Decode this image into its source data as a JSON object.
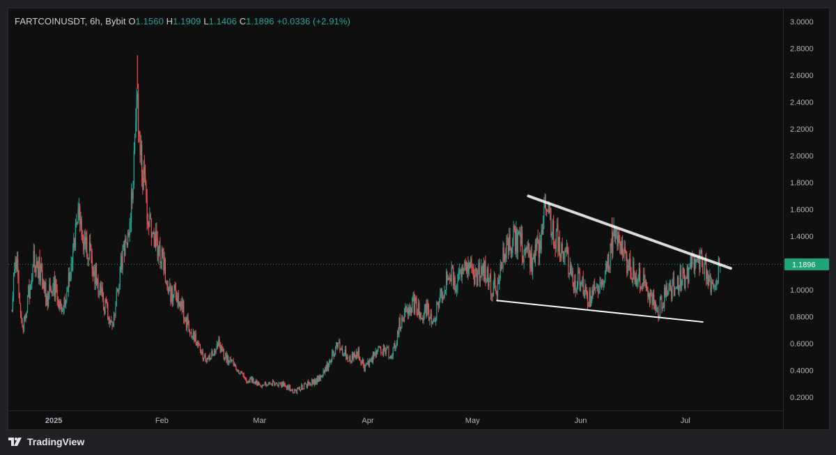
{
  "legend": {
    "symbol": "FARTCOINUSDT",
    "interval": "6h",
    "exchange": "Bybit",
    "open_label": "O",
    "open": "1.1560",
    "high_label": "H",
    "high": "1.1909",
    "low_label": "L",
    "low": "1.1406",
    "close_label": "C",
    "close": "1.1896",
    "change": "+0.0336",
    "change_pct": "(+2.91%)"
  },
  "branding": {
    "name": "TradingView",
    "logo_icon": "tradingview-logo-icon"
  },
  "colors": {
    "up": "#26a69a",
    "down": "#ef5350",
    "last_price_badge": "#22a37a",
    "trendline": "#ffffff",
    "background": "#0f0f10"
  },
  "chart_data": {
    "type": "candlestick",
    "title": "FARTCOINUSDT, 6h, Bybit",
    "ylim": [
      0.1,
      3.1
    ],
    "y_ticks": [
      "0.2000",
      "0.4000",
      "0.6000",
      "0.8000",
      "1.0000",
      "1.2000",
      "1.4000",
      "1.6000",
      "1.8000",
      "2.0000",
      "2.2000",
      "2.4000",
      "2.6000",
      "2.8000",
      "3.0000"
    ],
    "x_range": [
      "2024-12-19",
      "2025-07-29"
    ],
    "x_ticks": [
      {
        "label": "2025",
        "date": "2025-01-01",
        "bold": true
      },
      {
        "label": "Feb",
        "date": "2025-02-01",
        "bold": false
      },
      {
        "label": "Mar",
        "date": "2025-03-01",
        "bold": false
      },
      {
        "label": "Apr",
        "date": "2025-04-01",
        "bold": false
      },
      {
        "label": "May",
        "date": "2025-05-01",
        "bold": false
      },
      {
        "label": "Jun",
        "date": "2025-06-01",
        "bold": false
      },
      {
        "label": "Jul",
        "date": "2025-07-01",
        "bold": false
      }
    ],
    "last_price": "1.1896",
    "last_price_value": 1.1896,
    "price_path": [
      [
        "2024-12-20",
        0.85
      ],
      [
        "2024-12-21",
        1.28
      ],
      [
        "2024-12-22",
        1.0
      ],
      [
        "2024-12-23",
        0.68
      ],
      [
        "2024-12-25",
        1.0
      ],
      [
        "2024-12-26",
        1.25
      ],
      [
        "2024-12-28",
        1.15
      ],
      [
        "2024-12-30",
        0.92
      ],
      [
        "2025-01-01",
        1.05
      ],
      [
        "2025-01-03",
        0.88
      ],
      [
        "2025-01-05",
        1.0
      ],
      [
        "2025-01-07",
        1.38
      ],
      [
        "2025-01-08",
        1.55
      ],
      [
        "2025-01-10",
        1.35
      ],
      [
        "2025-01-12",
        1.2
      ],
      [
        "2025-01-14",
        1.0
      ],
      [
        "2025-01-16",
        0.85
      ],
      [
        "2025-01-18",
        0.75
      ],
      [
        "2025-01-19",
        1.0
      ],
      [
        "2025-01-21",
        1.3
      ],
      [
        "2025-01-23",
        1.55
      ],
      [
        "2025-01-24",
        2.0
      ],
      [
        "2025-01-25",
        2.5
      ],
      [
        "2025-01-26",
        1.95
      ],
      [
        "2025-01-28",
        1.5
      ],
      [
        "2025-01-30",
        1.35
      ],
      [
        "2025-02-01",
        1.25
      ],
      [
        "2025-02-03",
        1.0
      ],
      [
        "2025-02-05",
        0.95
      ],
      [
        "2025-02-07",
        0.85
      ],
      [
        "2025-02-09",
        0.7
      ],
      [
        "2025-02-11",
        0.6
      ],
      [
        "2025-02-13",
        0.5
      ],
      [
        "2025-02-15",
        0.5
      ],
      [
        "2025-02-17",
        0.6
      ],
      [
        "2025-02-19",
        0.5
      ],
      [
        "2025-02-21",
        0.45
      ],
      [
        "2025-02-23",
        0.38
      ],
      [
        "2025-02-25",
        0.33
      ],
      [
        "2025-02-27",
        0.33
      ],
      [
        "2025-03-01",
        0.29
      ],
      [
        "2025-03-03",
        0.3
      ],
      [
        "2025-03-05",
        0.3
      ],
      [
        "2025-03-07",
        0.3
      ],
      [
        "2025-03-09",
        0.27
      ],
      [
        "2025-03-11",
        0.24
      ],
      [
        "2025-03-13",
        0.27
      ],
      [
        "2025-03-15",
        0.3
      ],
      [
        "2025-03-17",
        0.32
      ],
      [
        "2025-03-19",
        0.37
      ],
      [
        "2025-03-21",
        0.45
      ],
      [
        "2025-03-23",
        0.58
      ],
      [
        "2025-03-25",
        0.55
      ],
      [
        "2025-03-27",
        0.48
      ],
      [
        "2025-03-29",
        0.55
      ],
      [
        "2025-03-31",
        0.42
      ],
      [
        "2025-04-02",
        0.48
      ],
      [
        "2025-04-04",
        0.55
      ],
      [
        "2025-04-06",
        0.55
      ],
      [
        "2025-04-08",
        0.5
      ],
      [
        "2025-04-10",
        0.75
      ],
      [
        "2025-04-12",
        0.85
      ],
      [
        "2025-04-14",
        0.9
      ],
      [
        "2025-04-16",
        0.82
      ],
      [
        "2025-04-18",
        0.85
      ],
      [
        "2025-04-20",
        0.78
      ],
      [
        "2025-04-22",
        0.95
      ],
      [
        "2025-04-24",
        1.15
      ],
      [
        "2025-04-26",
        1.05
      ],
      [
        "2025-04-28",
        1.1
      ],
      [
        "2025-04-30",
        1.2
      ],
      [
        "2025-05-02",
        1.1
      ],
      [
        "2025-05-04",
        1.15
      ],
      [
        "2025-05-06",
        1.05
      ],
      [
        "2025-05-08",
        1.0
      ],
      [
        "2025-05-10",
        1.25
      ],
      [
        "2025-05-12",
        1.38
      ],
      [
        "2025-05-14",
        1.35
      ],
      [
        "2025-05-16",
        1.3
      ],
      [
        "2025-05-18",
        1.2
      ],
      [
        "2025-05-20",
        1.35
      ],
      [
        "2025-05-22",
        1.6
      ],
      [
        "2025-05-24",
        1.45
      ],
      [
        "2025-05-26",
        1.35
      ],
      [
        "2025-05-28",
        1.25
      ],
      [
        "2025-05-30",
        1.05
      ],
      [
        "2025-06-01",
        1.08
      ],
      [
        "2025-06-03",
        0.92
      ],
      [
        "2025-06-05",
        1.0
      ],
      [
        "2025-06-07",
        1.05
      ],
      [
        "2025-06-09",
        1.2
      ],
      [
        "2025-06-11",
        1.45
      ],
      [
        "2025-06-13",
        1.3
      ],
      [
        "2025-06-15",
        1.15
      ],
      [
        "2025-06-17",
        1.1
      ],
      [
        "2025-06-19",
        1.05
      ],
      [
        "2025-06-21",
        0.95
      ],
      [
        "2025-06-23",
        0.82
      ],
      [
        "2025-06-25",
        0.95
      ],
      [
        "2025-06-27",
        1.0
      ],
      [
        "2025-06-29",
        1.05
      ],
      [
        "2025-07-01",
        1.1
      ],
      [
        "2025-07-03",
        1.2
      ],
      [
        "2025-07-05",
        1.22
      ],
      [
        "2025-07-07",
        1.15
      ],
      [
        "2025-07-08",
        1.05
      ],
      [
        "2025-07-10",
        1.1
      ],
      [
        "2025-07-11",
        1.1896
      ]
    ],
    "spikes": [
      [
        "2025-01-25",
        2.75
      ],
      [
        "2025-01-08",
        1.6
      ],
      [
        "2025-05-22",
        1.65
      ],
      [
        "2025-06-10",
        1.54
      ]
    ],
    "trendlines": [
      {
        "name": "upper",
        "from": [
          "2025-05-17",
          1.7
        ],
        "to": [
          "2025-07-14",
          1.16
        ],
        "width": 4,
        "opacity": 0.85
      },
      {
        "name": "lower",
        "from": [
          "2025-05-08",
          0.92
        ],
        "to": [
          "2025-07-06",
          0.76
        ],
        "width": 2,
        "opacity": 1.0
      }
    ]
  }
}
